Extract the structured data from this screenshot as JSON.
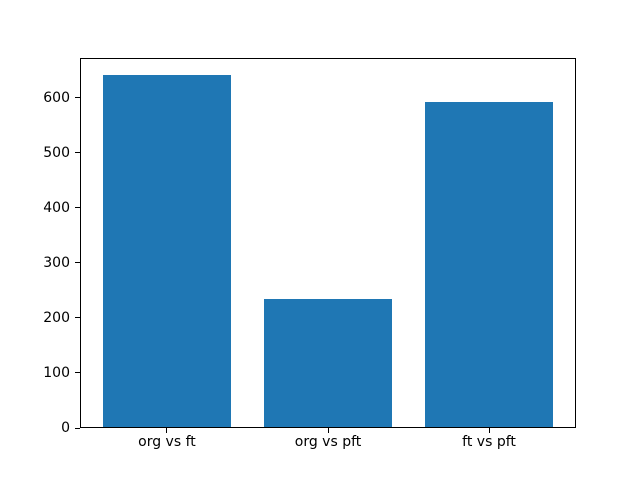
{
  "chart_data": {
    "type": "bar",
    "title": "",
    "xlabel": "",
    "ylabel": "",
    "categories": [
      "org vs ft",
      "org vs pft",
      "ft vs pft"
    ],
    "values": [
      640,
      232,
      590
    ],
    "yticks": [
      0,
      100,
      200,
      300,
      400,
      500,
      600
    ],
    "ylim": [
      0,
      672
    ],
    "xlim": [
      -0.54,
      2.54
    ],
    "bar_width": 0.8,
    "bar_color": "#1f77b4",
    "axis_color": "#000000",
    "background_color": "#ffffff",
    "grid": false,
    "legend": "none"
  }
}
